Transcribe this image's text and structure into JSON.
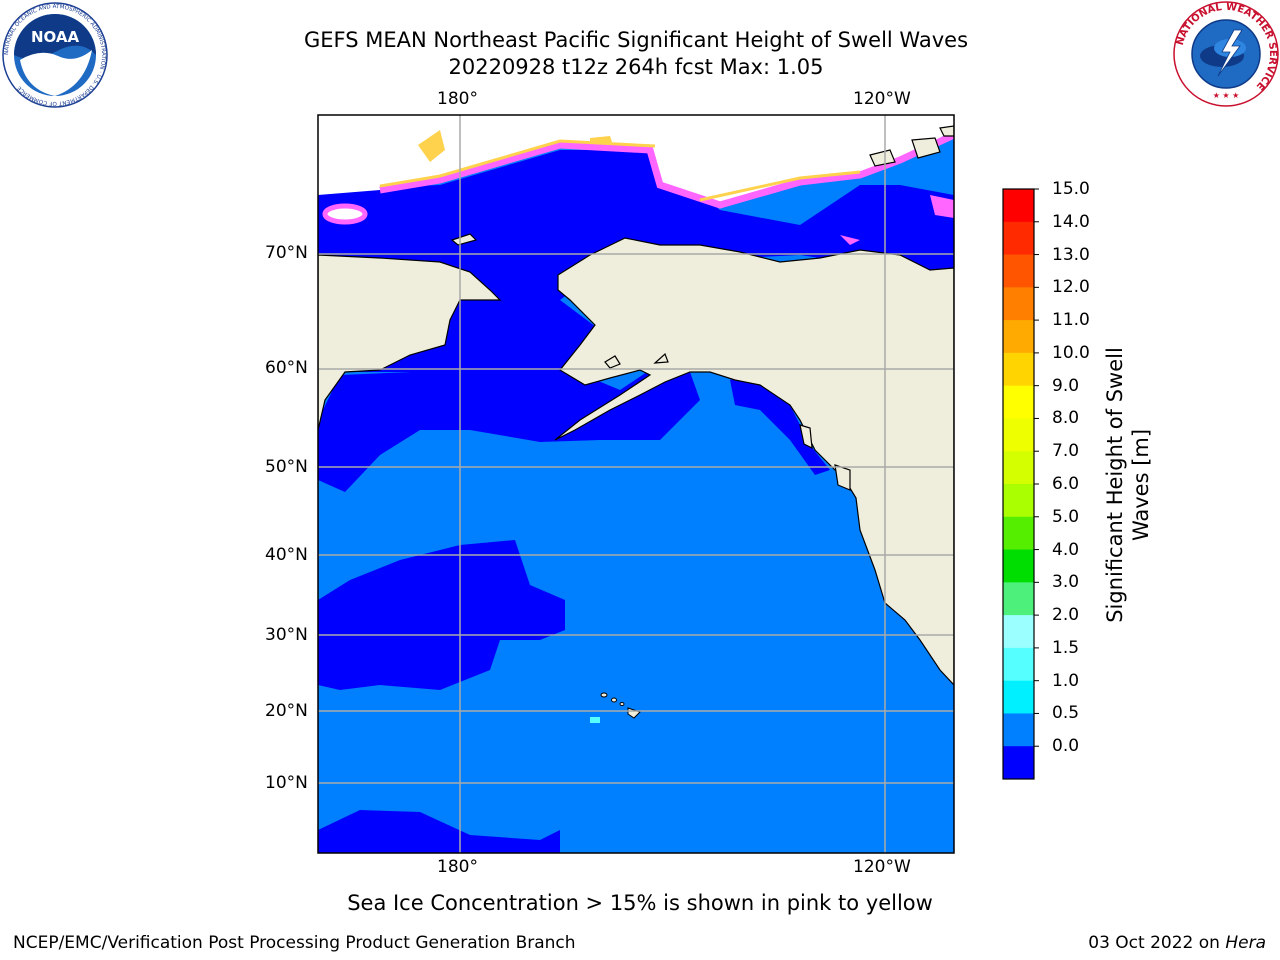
{
  "title": {
    "line1": "GEFS MEAN Northeast Pacific Significant Height of Swell Waves",
    "line2": "20220928 t12z 264h fcst   Max: 1.05"
  },
  "map": {
    "top_lon_labels": [
      "180°",
      "120°W"
    ],
    "bottom_lon_labels": [
      "180°",
      "120°W"
    ],
    "lat_labels": [
      "70°N",
      "60°N",
      "50°N",
      "40°N",
      "30°N",
      "20°N",
      "10°N"
    ],
    "colors": {
      "land": "#efeedd",
      "swell_0_05": "#0000ff",
      "swell_05_10": "#0080ff",
      "ice_pink": "#ff66ff",
      "ice_yellow": "#ffd24d",
      "grid": "#aaaaaa"
    }
  },
  "colorbar": {
    "label_line1": "Significant Height of Swell",
    "label_line2": "Waves [m]",
    "ticks": [
      "15.0",
      "14.0",
      "13.0",
      "12.0",
      "11.0",
      "10.0",
      "9.0",
      "8.0",
      "7.0",
      "6.0",
      "5.0",
      "4.0",
      "3.0",
      "2.0",
      "1.5",
      "1.0",
      "0.5",
      "0.0"
    ],
    "colors_top_to_bottom": [
      "#ff0000",
      "#ff2a00",
      "#ff5500",
      "#ff8000",
      "#ffaa00",
      "#ffd400",
      "#ffff00",
      "#eeff00",
      "#d4ff00",
      "#aaff00",
      "#55ee00",
      "#00dd00",
      "#4cf07a",
      "#9bffff",
      "#55ffff",
      "#00f0ff",
      "#0080ff",
      "#0000ff"
    ]
  },
  "note": "Sea Ice Concentration > 15% is shown in pink to yellow",
  "footer": {
    "left": "NCEP/EMC/Verification Post Processing Product Generation Branch",
    "right_date": "03 Oct 2022 on ",
    "right_host": "Hera"
  },
  "logos": {
    "noaa_text": "NOAA",
    "noaa_ring": "NATIONAL OCEANIC AND ATMOSPHERIC ADMINISTRATION · U.S. DEPARTMENT OF COMMERCE",
    "nws_ring": "NATIONAL WEATHER SERVICE"
  }
}
